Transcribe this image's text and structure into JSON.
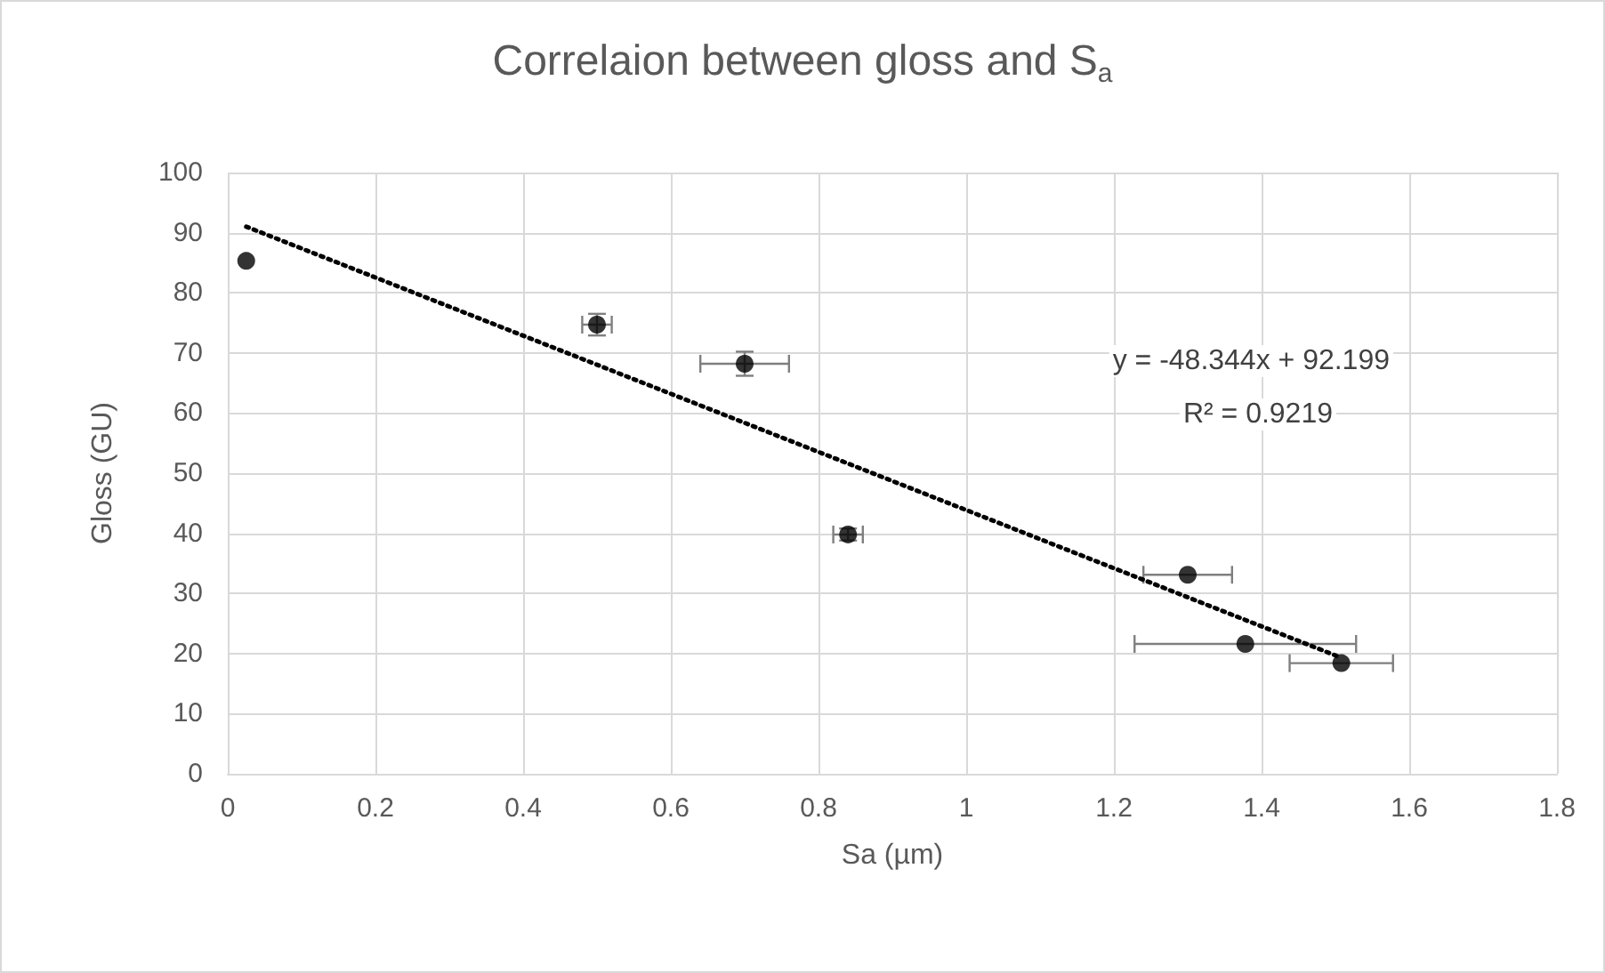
{
  "chart_data": {
    "type": "scatter",
    "title": "Correlaion between gloss and S$_{a}$",
    "xlabel": "Sa (µm)",
    "ylabel": "Gloss (GU)",
    "annotations": [
      "y = -48.344x + 92.199",
      "R² = 0.9219"
    ],
    "xlim": [
      0,
      1.8
    ],
    "xticks": [
      0,
      0.2,
      0.4,
      0.6,
      0.8,
      1,
      1.2,
      1.4,
      1.6,
      1.8
    ],
    "ylim": [
      0,
      100
    ],
    "yticks": [
      0,
      10,
      20,
      30,
      40,
      50,
      60,
      70,
      80,
      90,
      100
    ],
    "grid": true,
    "series": [
      {
        "color": "#000000",
        "marker": "circle",
        "x": [
          0.025,
          0.5,
          0.7,
          0.84,
          1.3,
          1.378,
          1.508
        ],
        "values": [
          85.3,
          74.7,
          68.2,
          39.8,
          33.1,
          21.6,
          18.4
        ],
        "errors": [
          null,
          1.8,
          2,
          1,
          null,
          null,
          null
        ],
        "xerrors": [
          null,
          0.02,
          0.06,
          0.02,
          0.06,
          0.15,
          0.07
        ]
      },
      {
        "type": "line",
        "color": "#000000",
        "marker": "none",
        "line_style": "dotted",
        "x": [
          0.025,
          1.508
        ],
        "values": [
          91.0,
          19.3
        ]
      }
    ]
  }
}
